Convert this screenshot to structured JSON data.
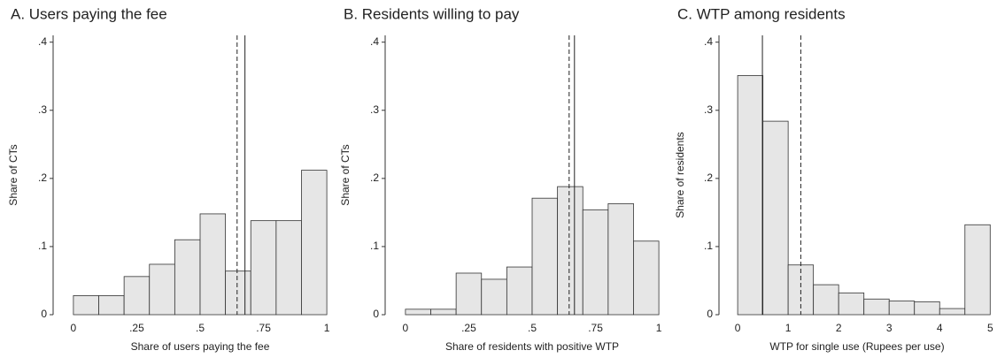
{
  "chart_data": [
    {
      "type": "histogram",
      "title": "A. Users paying the fee",
      "xlabel": "Share of users paying the fee",
      "ylabel": "Share of CTs",
      "bins": [
        0,
        0.1,
        0.2,
        0.3,
        0.4,
        0.5,
        0.6,
        0.7,
        0.8,
        0.9,
        1.0
      ],
      "values": [
        0.028,
        0.028,
        0.056,
        0.074,
        0.11,
        0.148,
        0.064,
        0.138,
        0.138,
        0.212
      ],
      "color": "#e6e6e6",
      "edgecolor": "#333333",
      "xlim": [
        -0.08,
        1.08
      ],
      "ylim": [
        0,
        0.41
      ],
      "xticks": [
        0,
        {
          "value": 0.25,
          "label": ".25"
        },
        {
          "value": 0.5,
          "label": ".5"
        },
        {
          "value": 0.75,
          "label": ".75"
        },
        1
      ],
      "yticks": [
        0,
        {
          "value": 0.1,
          "label": ".1"
        },
        {
          "value": 0.2,
          "label": ".2"
        },
        {
          "value": 0.3,
          "label": ".3"
        },
        {
          "value": 0.4,
          "label": ".4"
        }
      ],
      "vlines": [
        {
          "value": 0.677,
          "style": "solid"
        },
        {
          "value": 0.646,
          "style": "dashed"
        }
      ]
    },
    {
      "type": "histogram",
      "title": "B. Residents willing to pay",
      "xlabel": "Share of residents with positive WTP",
      "ylabel": "Share of CTs",
      "bins": [
        0,
        0.1,
        0.2,
        0.3,
        0.4,
        0.5,
        0.6,
        0.7,
        0.8,
        0.9,
        1.0
      ],
      "values": [
        0.008,
        0.008,
        0.061,
        0.052,
        0.07,
        0.171,
        0.188,
        0.154,
        0.163,
        0.108
      ],
      "color": "#e6e6e6",
      "edgecolor": "#333333",
      "xlim": [
        -0.08,
        1.08
      ],
      "ylim": [
        0,
        0.41
      ],
      "xticks": [
        0,
        {
          "value": 0.25,
          "label": ".25"
        },
        {
          "value": 0.5,
          "label": ".5"
        },
        {
          "value": 0.75,
          "label": ".75"
        },
        1
      ],
      "yticks": [
        0,
        {
          "value": 0.1,
          "label": ".1"
        },
        {
          "value": 0.2,
          "label": ".2"
        },
        {
          "value": 0.3,
          "label": ".3"
        },
        {
          "value": 0.4,
          "label": ".4"
        }
      ],
      "vlines": [
        {
          "value": 0.667,
          "style": "solid"
        },
        {
          "value": 0.646,
          "style": "dashed"
        }
      ]
    },
    {
      "type": "histogram",
      "title": "C. WTP among residents",
      "xlabel": "WTP for single use (Rupees per use)",
      "ylabel": "Share of residents",
      "bins": [
        0,
        0.5,
        1,
        1.5,
        2,
        2.5,
        3,
        3.5,
        4,
        4.5,
        5
      ],
      "values": [
        0.351,
        0.284,
        0.073,
        0.044,
        0.032,
        0.023,
        0.02,
        0.019,
        0.009,
        0.132
      ],
      "color": "#e6e6e6",
      "edgecolor": "#333333",
      "xlim": [
        -0.37,
        5.1
      ],
      "ylim": [
        0,
        0.41
      ],
      "xticks": [
        0,
        1,
        2,
        3,
        4,
        5
      ],
      "yticks": [
        0,
        {
          "value": 0.1,
          "label": ".1"
        },
        {
          "value": 0.2,
          "label": ".2"
        },
        {
          "value": 0.3,
          "label": ".3"
        },
        {
          "value": 0.4,
          "label": ".4"
        }
      ],
      "vlines": [
        {
          "value": 0.49,
          "style": "solid"
        },
        {
          "value": 1.25,
          "style": "dashed"
        }
      ]
    }
  ]
}
